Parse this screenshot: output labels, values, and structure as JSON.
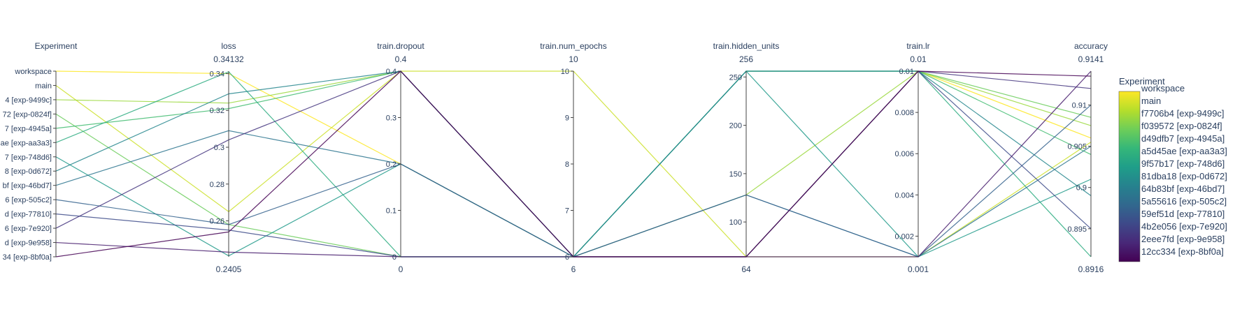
{
  "chart_data": {
    "type": "parallel_coordinates",
    "colorscale": [
      "#440154",
      "#482878",
      "#3e4989",
      "#31688e",
      "#26828e",
      "#1f9e89",
      "#35b779",
      "#6ece58",
      "#b5de2b",
      "#fde725"
    ],
    "legend": {
      "title": "Experiment",
      "placement": "right"
    },
    "dimensions": [
      {
        "key": "experiment",
        "title": "Experiment",
        "kind": "categorical",
        "categories": [
          "workspace",
          "main",
          "f7706b4 [exp-9499c]",
          "f039572 [exp-0824f]",
          "d49dfb7 [exp-4945a]",
          "a5d45ae [exp-aa3a3]",
          "9f57b17 [exp-748d6]",
          "81dba18 [exp-0d672]",
          "64b83bf [exp-46bd7]",
          "5a55616 [exp-505c2]",
          "59ef51d [exp-77810]",
          "4b2e056 [exp-7e920]",
          "2eee7fd [exp-9e958]",
          "12cc334 [exp-8bf0a]"
        ],
        "axis_labels": [
          "workspace",
          "main",
          "4 [exp-9499c]",
          "72 [exp-0824f]",
          "7 [exp-4945a]",
          "ae [exp-aa3a3]",
          "7 [exp-748d6]",
          "8 [exp-0d672]",
          "bf [exp-46bd7]",
          "6 [exp-505c2]",
          "d [exp-77810]",
          "6 [exp-7e920]",
          "d [exp-9e958]",
          "34 [exp-8bf0a]"
        ]
      },
      {
        "key": "loss",
        "title": "loss",
        "kind": "numeric",
        "range": [
          0.2405,
          0.34132
        ],
        "min_label": "0.2405",
        "max_label": "0.34132",
        "ticks": [
          0.26,
          0.28,
          0.3,
          0.32,
          0.34
        ],
        "tick_labels": [
          "0.26",
          "0.28",
          "0.3",
          "0.32",
          "0.34"
        ]
      },
      {
        "key": "dropout",
        "title": "train.dropout",
        "kind": "numeric",
        "range": [
          0,
          0.4
        ],
        "min_label": "0",
        "max_label": "0.4",
        "ticks": [
          0,
          0.1,
          0.2,
          0.3,
          0.4
        ],
        "tick_labels": [
          "0",
          "0.1",
          "0.2",
          "0.3",
          "0.4"
        ]
      },
      {
        "key": "epochs",
        "title": "train.num_epochs",
        "kind": "numeric",
        "range": [
          6,
          10
        ],
        "min_label": "6",
        "max_label": "10",
        "ticks": [
          6,
          7,
          8,
          9,
          10
        ],
        "tick_labels": [
          "6",
          "7",
          "8",
          "9",
          "10"
        ]
      },
      {
        "key": "hidden",
        "title": "train.hidden_units",
        "kind": "numeric",
        "range": [
          64,
          256
        ],
        "min_label": "64",
        "max_label": "256",
        "ticks": [
          100,
          150,
          200,
          250
        ],
        "tick_labels": [
          "100",
          "150",
          "200",
          "250"
        ]
      },
      {
        "key": "lr",
        "title": "train.lr",
        "kind": "numeric",
        "range": [
          0.001,
          0.01
        ],
        "min_label": "0.001",
        "max_label": "0.01",
        "ticks": [
          0.002,
          0.004,
          0.006,
          0.008,
          0.01
        ],
        "tick_labels": [
          "0.002",
          "0.004",
          "0.006",
          "0.008",
          "0.01"
        ]
      },
      {
        "key": "accuracy",
        "title": "accuracy",
        "kind": "numeric",
        "range": [
          0.8916,
          0.9141
        ],
        "min_label": "0.8916",
        "max_label": "0.9141",
        "ticks": [
          0.895,
          0.9,
          0.905,
          0.91
        ],
        "tick_labels": [
          "0.895",
          "0.9",
          "0.905",
          "0.91"
        ]
      }
    ],
    "records": [
      {
        "experiment": "workspace",
        "loss": 0.34,
        "dropout": 0.2,
        "epochs": 6,
        "hidden": 64,
        "lr": 0.01,
        "accuracy": 0.906
      },
      {
        "experiment": "main",
        "loss": 0.265,
        "dropout": 0.4,
        "epochs": 10,
        "hidden": 64,
        "lr": 0.001,
        "accuracy": 0.9055
      },
      {
        "experiment": "f7706b4 [exp-9499c]",
        "loss": 0.324,
        "dropout": 0.4,
        "epochs": 6,
        "hidden": 128,
        "lr": 0.01,
        "accuracy": 0.9075
      },
      {
        "experiment": "f039572 [exp-0824f]",
        "loss": 0.258,
        "dropout": 0,
        "epochs": 6,
        "hidden": 256,
        "lr": 0.01,
        "accuracy": 0.9085
      },
      {
        "experiment": "d49dfb7 [exp-4945a]",
        "loss": 0.321,
        "dropout": 0.4,
        "epochs": 6,
        "hidden": 256,
        "lr": 0.01,
        "accuracy": 0.904
      },
      {
        "experiment": "a5d45ae [exp-aa3a3]",
        "loss": 0.341,
        "dropout": 0,
        "epochs": 6,
        "hidden": 256,
        "lr": 0.01,
        "accuracy": 0.8916
      },
      {
        "experiment": "9f57b17 [exp-748d6]",
        "loss": 0.241,
        "dropout": 0.2,
        "epochs": 6,
        "hidden": 256,
        "lr": 0.001,
        "accuracy": 0.901
      },
      {
        "experiment": "81dba18 [exp-0d672]",
        "loss": 0.329,
        "dropout": 0.4,
        "epochs": 6,
        "hidden": 256,
        "lr": 0.01,
        "accuracy": 0.899
      },
      {
        "experiment": "64b83bf [exp-46bd7]",
        "loss": 0.309,
        "dropout": 0.2,
        "epochs": 6,
        "hidden": 128,
        "lr": 0.001,
        "accuracy": 0.905
      },
      {
        "experiment": "5a55616 [exp-505c2]",
        "loss": 0.258,
        "dropout": 0.2,
        "epochs": 6,
        "hidden": 128,
        "lr": 0.001,
        "accuracy": 0.91
      },
      {
        "experiment": "59ef51d [exp-77810]",
        "loss": 0.255,
        "dropout": 0,
        "epochs": 6,
        "hidden": 64,
        "lr": 0.01,
        "accuracy": 0.895
      },
      {
        "experiment": "4b2e056 [exp-7e920]",
        "loss": 0.304,
        "dropout": 0.4,
        "epochs": 6,
        "hidden": 64,
        "lr": 0.01,
        "accuracy": 0.912
      },
      {
        "experiment": "2eee7fd [exp-9e958]",
        "loss": 0.243,
        "dropout": 0,
        "epochs": 6,
        "hidden": 64,
        "lr": 0.001,
        "accuracy": 0.9141
      },
      {
        "experiment": "12cc334 [exp-8bf0a]",
        "loss": 0.254,
        "dropout": 0.4,
        "epochs": 6,
        "hidden": 64,
        "lr": 0.01,
        "accuracy": 0.9135
      }
    ]
  }
}
